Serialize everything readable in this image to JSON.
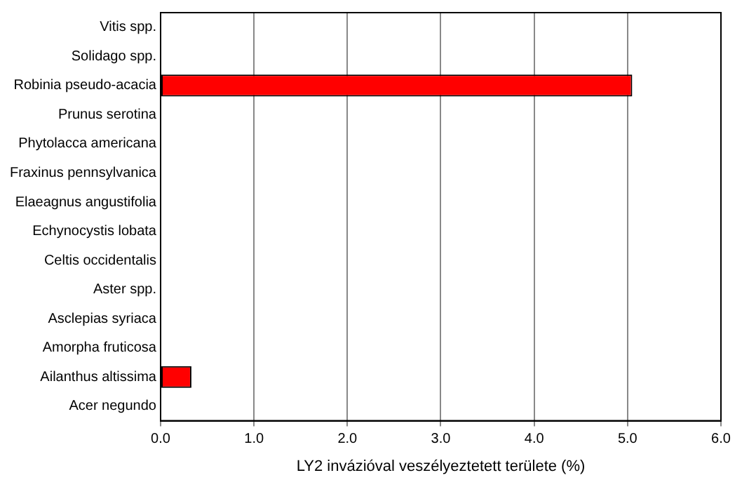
{
  "chart_data": {
    "type": "bar",
    "orientation": "horizontal",
    "xlabel": "LY2 invázióval veszélyeztetett területe (%)",
    "categories": [
      "Vitis spp.",
      "Solidago spp.",
      "Robinia pseudo-acacia",
      "Prunus serotina",
      "Phytolacca americana",
      "Fraxinus pennsylvanica",
      "Elaeagnus angustifolia",
      "Echynocystis lobata",
      "Celtis occidentalis",
      "Aster spp.",
      "Asclepias syriaca",
      "Amorpha fruticosa",
      "Ailanthus altissima",
      "Acer negundo"
    ],
    "values": [
      0,
      0,
      5.05,
      0,
      0,
      0,
      0,
      0,
      0,
      0,
      0,
      0,
      0.33,
      0
    ],
    "color": "#ff0000",
    "xlim": [
      0,
      6
    ],
    "xticks": [
      {
        "value": 0,
        "label": "0.0"
      },
      {
        "value": 1,
        "label": "1.0"
      },
      {
        "value": 2,
        "label": "2.0"
      },
      {
        "value": 3,
        "label": "3.0"
      },
      {
        "value": 4,
        "label": "4.0"
      },
      {
        "value": 5,
        "label": "5.0"
      },
      {
        "value": 6,
        "label": "6.0"
      }
    ],
    "grid": "x",
    "legend": false
  }
}
